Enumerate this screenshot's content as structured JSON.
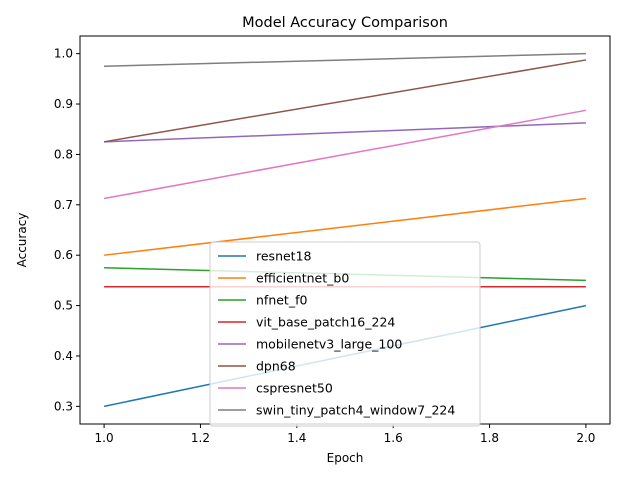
{
  "chart_data": {
    "type": "line",
    "title": "Model Accuracy Comparison",
    "xlabel": "Epoch",
    "ylabel": "Accuracy",
    "x": [
      1.0,
      2.0
    ],
    "xlim": [
      0.95,
      2.05
    ],
    "ylim": [
      0.265,
      1.035
    ],
    "xticks": [
      1.0,
      1.2,
      1.4,
      1.6,
      1.8,
      2.0
    ],
    "xtick_labels": [
      "1.0",
      "1.2",
      "1.4",
      "1.6",
      "1.8",
      "2.0"
    ],
    "yticks": [
      0.3,
      0.4,
      0.5,
      0.6,
      0.7,
      0.8,
      0.9,
      1.0
    ],
    "ytick_labels": [
      "0.3",
      "0.4",
      "0.5",
      "0.6",
      "0.7",
      "0.8",
      "0.9",
      "1.0"
    ],
    "grid": false,
    "legend_position": "lower-center",
    "series": [
      {
        "name": "resnet18",
        "color": "#1f77b4",
        "values": [
          0.3,
          0.5
        ]
      },
      {
        "name": "efficientnet_b0",
        "color": "#ff7f0e",
        "values": [
          0.6,
          0.7125
        ]
      },
      {
        "name": "nfnet_f0",
        "color": "#2ca02c",
        "values": [
          0.575,
          0.55
        ]
      },
      {
        "name": "vit_base_patch16_224",
        "color": "#d62728",
        "values": [
          0.5375,
          0.5375
        ]
      },
      {
        "name": "mobilenetv3_large_100",
        "color": "#9467bd",
        "values": [
          0.825,
          0.8625
        ]
      },
      {
        "name": "dpn68",
        "color": "#8c564b",
        "values": [
          0.825,
          0.9875
        ]
      },
      {
        "name": "cspresnet50",
        "color": "#e377c2",
        "values": [
          0.7125,
          0.8875
        ]
      },
      {
        "name": "swin_tiny_patch4_window7_224",
        "color": "#7f7f7f",
        "values": [
          0.975,
          1.0
        ]
      }
    ]
  }
}
